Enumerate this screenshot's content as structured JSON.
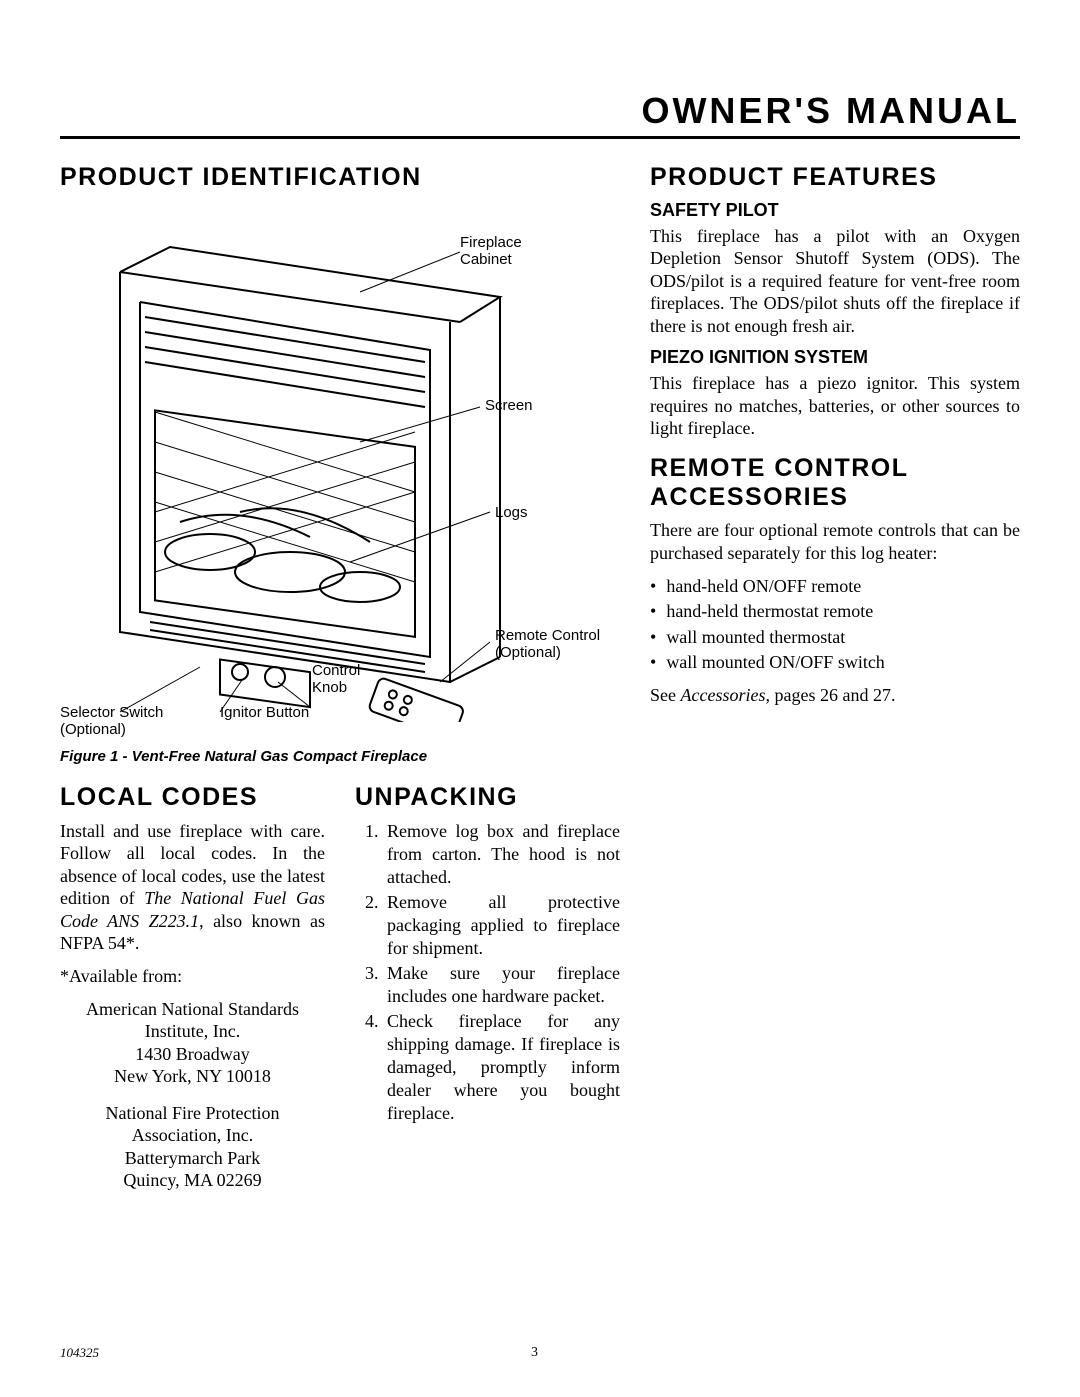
{
  "page_title": "OWNER'S MANUAL",
  "left": {
    "product_id_heading": "PRODUCT IDENTIFICATION",
    "diagram_labels": {
      "fireplace_cabinet": "Fireplace\nCabinet",
      "screen": "Screen",
      "logs": "Logs",
      "remote_control": "Remote Control\n(Optional)",
      "control_knob": "Control\nKnob",
      "ignitor_button": "Ignitor Button",
      "selector_switch": "Selector Switch\n(Optional)"
    },
    "figure_caption": "Figure 1 - Vent-Free Natural Gas Compact Fireplace",
    "local_codes_heading": "LOCAL CODES",
    "local_codes_body": "Install and use fireplace with care. Follow all local codes. In the absence of local codes, use the latest edition of ",
    "local_codes_italic": "The National Fuel Gas Code ANS Z223.1",
    "local_codes_tail": ", also known as NFPA 54*.",
    "available_from": "*Available from:",
    "addr1_line1": "American National Standards Institute, Inc.",
    "addr1_line2": "1430 Broadway",
    "addr1_line3": "New York, NY  10018",
    "addr2_line1": "National Fire Protection Association, Inc.",
    "addr2_line2": "Batterymarch Park",
    "addr2_line3": "Quincy, MA  02269",
    "unpacking_heading": "UNPACKING",
    "unpacking_steps": [
      "Remove log box and fireplace from carton. The hood is not attached.",
      "Remove all protective packaging applied to fireplace for shipment.",
      "Make sure your fireplace includes one hardware packet.",
      "Check fireplace for any shipping damage. If fireplace is damaged, promptly inform dealer where you bought fireplace."
    ]
  },
  "right": {
    "features_heading": "PRODUCT FEATURES",
    "safety_pilot_heading": "SAFETY PILOT",
    "safety_pilot_body": "This fireplace has a pilot with an Oxygen Depletion Sensor Shutoff System (ODS). The ODS/pilot is a required feature for vent-free room fireplaces. The ODS/pilot shuts off the fireplace if there is not enough fresh air.",
    "piezo_heading": "PIEZO IGNITION SYSTEM",
    "piezo_body": "This fireplace has a piezo ignitor. This system requires no matches, batteries, or other sources to light fireplace.",
    "remote_heading": "REMOTE CONTROL ACCESSORIES",
    "remote_intro": "There are four optional remote controls that can be purchased separately for this log heater:",
    "remote_bullets": [
      "hand-held ON/OFF remote",
      "hand-held thermostat remote",
      "wall mounted thermostat",
      "wall mounted ON/OFF switch"
    ],
    "see_text_pre": "See ",
    "see_text_italic": "Accessories,",
    "see_text_post": " pages 26 and 27."
  },
  "footer": {
    "docnum": "104325",
    "pagenum": "3"
  },
  "colors": {
    "text": "#000000",
    "background": "#ffffff",
    "stroke": "#000000"
  }
}
